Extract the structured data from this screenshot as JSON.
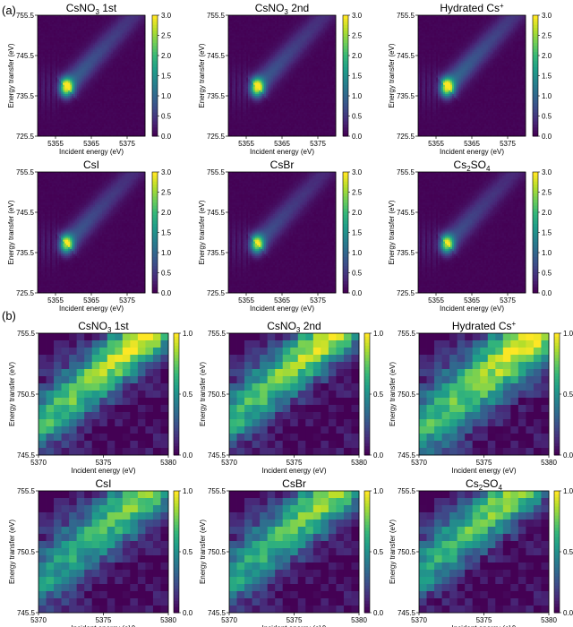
{
  "panel_labels": [
    "(a)",
    "(b)"
  ],
  "colors": {
    "colormap": "viridis",
    "background": "#ffffff"
  },
  "chart_data": [
    {
      "type": "heatmap",
      "panel": "a",
      "title": "CsNO3 1st",
      "title_base": "CsNO",
      "title_sub": "3",
      "title_rest": " 1st",
      "xlabel": "Incident energy (eV)",
      "ylabel": "Energy transfer (eV)",
      "xlim": [
        5350,
        5380
      ],
      "ylim": [
        725.5,
        755.5
      ],
      "xticks": [
        "5355",
        "5365",
        "5375"
      ],
      "yticks": [
        "725.5",
        "735.5",
        "745.5",
        "755.5"
      ],
      "colorbar": {
        "min": 0,
        "max": 3.0,
        "ticks": [
          "0.0",
          "0.5",
          "1.0",
          "1.5",
          "2.0",
          "2.5",
          "3.0"
        ]
      },
      "features": {
        "spot": {
          "x": 5358,
          "y": 737.5,
          "peak": 3.0
        },
        "diagonal_ridge": {
          "level": 1.0
        }
      }
    },
    {
      "type": "heatmap",
      "panel": "a",
      "title": "CsNO3 2nd",
      "title_base": "CsNO",
      "title_sub": "3",
      "title_rest": " 2nd",
      "xlabel": "Incident energy (eV)",
      "ylabel": "Energy transfer (eV)",
      "xlim": [
        5350,
        5380
      ],
      "ylim": [
        725.5,
        755.5
      ],
      "xticks": [
        "5355",
        "5365",
        "5375"
      ],
      "yticks": [
        "725.5",
        "735.5",
        "745.5",
        "755.5"
      ],
      "colorbar": {
        "min": 0,
        "max": 3.0,
        "ticks": [
          "0.0",
          "0.5",
          "1.0",
          "1.5",
          "2.0",
          "2.5",
          "3.0"
        ]
      },
      "features": {
        "spot": {
          "x": 5358,
          "y": 737.5,
          "peak": 3.0
        },
        "diagonal_ridge": {
          "level": 0.9
        }
      }
    },
    {
      "type": "heatmap",
      "panel": "a",
      "title": "Hydrated Cs+",
      "title_base": "Hydrated Cs",
      "title_sup": "+",
      "xlabel": "Incident energy (eV)",
      "ylabel": "Energy transfer (eV)",
      "xlim": [
        5350,
        5380
      ],
      "ylim": [
        725.5,
        755.5
      ],
      "xticks": [
        "5355",
        "5365",
        "5375"
      ],
      "yticks": [
        "725.5",
        "735.5",
        "745.5",
        "755.5"
      ],
      "colorbar": {
        "min": 0,
        "max": 3.0,
        "ticks": [
          "0.0",
          "0.5",
          "1.0",
          "1.5",
          "2.0",
          "2.5",
          "3.0"
        ]
      },
      "features": {
        "spot": {
          "x": 5358,
          "y": 737.5,
          "peak": 3.0
        },
        "diagonal_ridge": {
          "level": 1.1
        }
      }
    },
    {
      "type": "heatmap",
      "panel": "a",
      "title": "CsI",
      "title_base": "CsI",
      "xlabel": "Incident energy (eV)",
      "ylabel": "Energy transfer (eV)",
      "xlim": [
        5350,
        5380
      ],
      "ylim": [
        725.5,
        755.5
      ],
      "xticks": [
        "5355",
        "5365",
        "5375"
      ],
      "yticks": [
        "725.5",
        "735.5",
        "745.5",
        "755.5"
      ],
      "colorbar": {
        "min": 0,
        "max": 3.0,
        "ticks": [
          "0.0",
          "0.5",
          "1.0",
          "1.5",
          "2.0",
          "2.5",
          "3.0"
        ]
      },
      "features": {
        "spot": {
          "x": 5358,
          "y": 737.5,
          "peak": 2.6
        },
        "diagonal_ridge": {
          "level": 0.9
        }
      }
    },
    {
      "type": "heatmap",
      "panel": "a",
      "title": "CsBr",
      "title_base": "CsBr",
      "xlabel": "Incident energy (eV)",
      "ylabel": "Energy transfer (eV)",
      "xlim": [
        5350,
        5380
      ],
      "ylim": [
        725.5,
        755.5
      ],
      "xticks": [
        "5355",
        "5365",
        "5375"
      ],
      "yticks": [
        "725.5",
        "735.5",
        "745.5",
        "755.5"
      ],
      "colorbar": {
        "min": 0,
        "max": 3.0,
        "ticks": [
          "0.0",
          "0.5",
          "1.0",
          "1.5",
          "2.0",
          "2.5",
          "3.0"
        ]
      },
      "features": {
        "spot": {
          "x": 5358,
          "y": 737.5,
          "peak": 2.6
        },
        "diagonal_ridge": {
          "level": 0.8
        }
      }
    },
    {
      "type": "heatmap",
      "panel": "a",
      "title": "Cs2SO4",
      "title_base": "Cs",
      "title_sub": "2",
      "title_rest": "SO",
      "title_sub2": "4",
      "xlabel": "Incident energy (eV)",
      "ylabel": "Energy transfer (eV)",
      "xlim": [
        5350,
        5380
      ],
      "ylim": [
        725.5,
        755.5
      ],
      "xticks": [
        "5355",
        "5365",
        "5375"
      ],
      "yticks": [
        "725.5",
        "735.5",
        "745.5",
        "755.5"
      ],
      "colorbar": {
        "min": 0,
        "max": 3.0,
        "ticks": [
          "0.0",
          "0.5",
          "1.0",
          "1.5",
          "2.0",
          "2.5",
          "3.0"
        ]
      },
      "features": {
        "spot": {
          "x": 5358,
          "y": 737.5,
          "peak": 2.6
        },
        "diagonal_ridge": {
          "level": 0.8
        }
      }
    },
    {
      "type": "heatmap",
      "panel": "b",
      "title": "CsNO3 1st",
      "title_base": "CsNO",
      "title_sub": "3",
      "title_rest": " 1st",
      "xlabel": "Incident energy (eV)",
      "ylabel": "Energy transfer (eV)",
      "xlim": [
        5370,
        5380
      ],
      "ylim": [
        745.5,
        755.5
      ],
      "xticks": [
        "5370",
        "5375",
        "5380"
      ],
      "yticks": [
        "745.5",
        "750.5",
        "755.5"
      ],
      "colorbar": {
        "min": 0,
        "max": 1.0,
        "ticks": [
          "0.0",
          "0.5",
          "1.0"
        ]
      },
      "grid_size": [
        17,
        17
      ],
      "features": {
        "band_center_offset": 0.6,
        "band_width": 1.8,
        "peak": 1.0
      }
    },
    {
      "type": "heatmap",
      "panel": "b",
      "title": "CsNO3 2nd",
      "title_base": "CsNO",
      "title_sub": "3",
      "title_rest": " 2nd",
      "xlabel": "Incident energy (eV)",
      "ylabel": "Energy transfer (eV)",
      "xlim": [
        5370,
        5380
      ],
      "ylim": [
        745.5,
        755.5
      ],
      "xticks": [
        "5370",
        "5375",
        "5380"
      ],
      "yticks": [
        "745.5",
        "750.5",
        "755.5"
      ],
      "colorbar": {
        "min": 0,
        "max": 1.0,
        "ticks": [
          "0.0",
          "0.5",
          "1.0"
        ]
      },
      "grid_size": [
        17,
        17
      ],
      "features": {
        "band_center_offset": 0.4,
        "band_width": 1.8,
        "peak": 0.95
      }
    },
    {
      "type": "heatmap",
      "panel": "b",
      "title": "Hydrated Cs+",
      "title_base": "Hydrated Cs",
      "title_sup": "+",
      "xlabel": "Incident energy (eV)",
      "ylabel": "Energy transfer (eV)",
      "xlim": [
        5370,
        5380
      ],
      "ylim": [
        745.5,
        755.5
      ],
      "xticks": [
        "5370",
        "5375",
        "5380"
      ],
      "yticks": [
        "745.5",
        "750.5",
        "755.5"
      ],
      "colorbar": {
        "min": 0,
        "max": 1.0,
        "ticks": [
          "0.0",
          "0.5",
          "1.0"
        ]
      },
      "grid_size": [
        17,
        17
      ],
      "features": {
        "band_center_offset": 0.9,
        "band_width": 2.2,
        "peak": 1.0
      }
    },
    {
      "type": "heatmap",
      "panel": "b",
      "title": "CsI",
      "title_base": "CsI",
      "xlabel": "Incident energy (eV)",
      "ylabel": "Energy transfer (eV)",
      "xlim": [
        5370,
        5380
      ],
      "ylim": [
        745.5,
        755.5
      ],
      "xticks": [
        "5370",
        "5375",
        "5380"
      ],
      "yticks": [
        "745.5",
        "750.5",
        "755.5"
      ],
      "colorbar": {
        "min": 0,
        "max": 1.0,
        "ticks": [
          "0.0",
          "0.5",
          "1.0"
        ]
      },
      "grid_size": [
        17,
        17
      ],
      "features": {
        "band_center_offset": 0.6,
        "band_width": 2.0,
        "peak": 0.8
      }
    },
    {
      "type": "heatmap",
      "panel": "b",
      "title": "CsBr",
      "title_base": "CsBr",
      "xlabel": "Incident energy (eV)",
      "ylabel": "Energy transfer (eV)",
      "xlim": [
        5370,
        5380
      ],
      "ylim": [
        745.5,
        755.5
      ],
      "xticks": [
        "5370",
        "5375",
        "5380"
      ],
      "yticks": [
        "745.5",
        "750.5",
        "755.5"
      ],
      "colorbar": {
        "min": 0,
        "max": 1.0,
        "ticks": [
          "0.0",
          "0.5",
          "1.0"
        ]
      },
      "grid_size": [
        17,
        17
      ],
      "features": {
        "band_center_offset": 0.5,
        "band_width": 1.9,
        "peak": 0.85
      }
    },
    {
      "type": "heatmap",
      "panel": "b",
      "title": "Cs2SO4",
      "title_base": "Cs",
      "title_sub": "2",
      "title_rest": "SO",
      "title_sub2": "4",
      "xlabel": "Incident energy (eV)",
      "ylabel": "Energy transfer (eV)",
      "xlim": [
        5370,
        5380
      ],
      "ylim": [
        745.5,
        755.5
      ],
      "xticks": [
        "5370",
        "5375",
        "5380"
      ],
      "yticks": [
        "745.5",
        "750.5",
        "755.5"
      ],
      "colorbar": {
        "min": 0,
        "max": 1.0,
        "ticks": [
          "0.0",
          "0.5",
          "1.0"
        ]
      },
      "grid_size": [
        17,
        17
      ],
      "features": {
        "band_center_offset": 0.2,
        "band_width": 1.8,
        "peak": 0.85
      }
    }
  ]
}
